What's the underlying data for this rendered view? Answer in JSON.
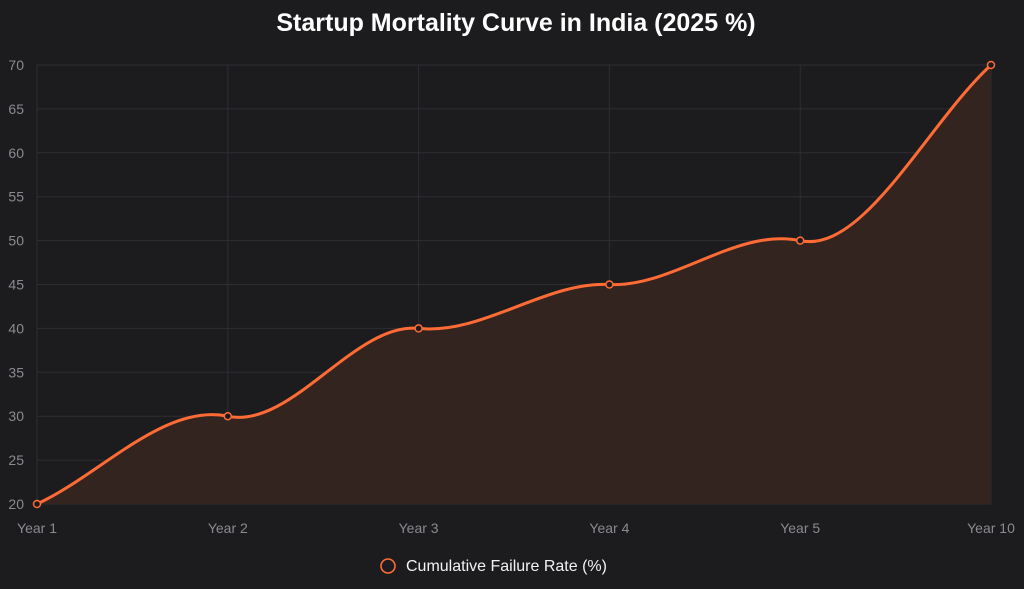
{
  "chart_data": {
    "type": "line",
    "title": "Startup Mortality Curve in India (2025 %)",
    "categories": [
      "Year 1",
      "Year 2",
      "Year 3",
      "Year 4",
      "Year 5",
      "Year 10"
    ],
    "series": [
      {
        "name": "Cumulative Failure Rate (%)",
        "values": [
          20,
          30,
          40,
          45,
          50,
          70
        ],
        "color": "#ff6b35",
        "fill": "#33241f"
      }
    ],
    "y_ticks": [
      20,
      25,
      30,
      35,
      40,
      45,
      50,
      55,
      60,
      65,
      70
    ],
    "ylim": [
      20,
      70
    ],
    "xlabel": "",
    "ylabel": "",
    "grid": true,
    "legend_position": "bottom",
    "colors": {
      "background": "#1c1c1f",
      "grid": "#2e2e33",
      "tick_label": "#8a8a90",
      "title": "#ffffff"
    }
  }
}
